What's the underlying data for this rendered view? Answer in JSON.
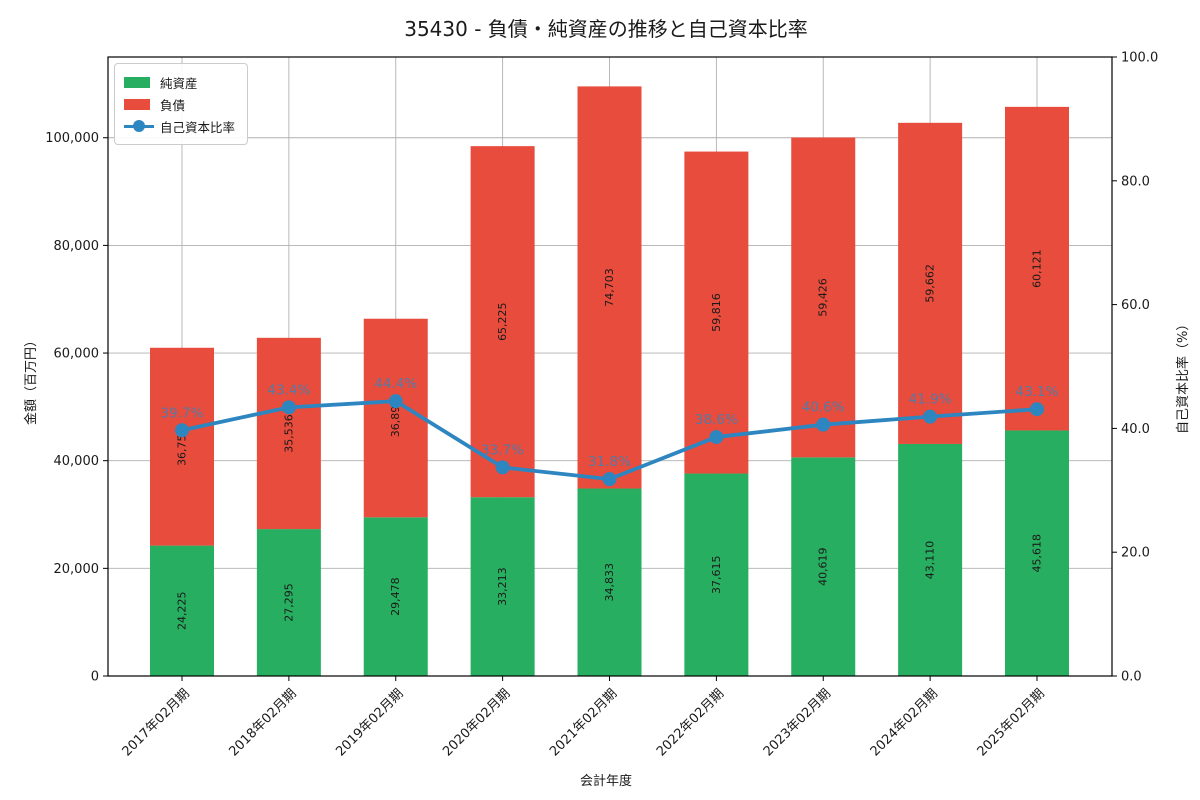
{
  "chart_data": {
    "type": "bar",
    "stacked": true,
    "overlay_line": true,
    "title": "35430 - 負債・純資産の推移と自己資本比率",
    "xlabel": "会計年度",
    "ylabel_left": "金額（百万円）",
    "ylabel_right": "自己資本比率（%）",
    "ylim_left": [
      0,
      115000
    ],
    "ylim_right": [
      0,
      100
    ],
    "grid": true,
    "legend_position": "upper left",
    "categories": [
      "2017年02月期",
      "2018年02月期",
      "2019年02月期",
      "2020年02月期",
      "2021年02月期",
      "2022年02月期",
      "2023年02月期",
      "2024年02月期",
      "2025年02月期"
    ],
    "series": [
      {
        "name": "純資産",
        "role": "bar-bottom",
        "color": "#27ae60",
        "values": [
          24225,
          27295,
          29478,
          33213,
          34833,
          37615,
          40619,
          43110,
          45618
        ],
        "value_labels": [
          "24,225",
          "27,295",
          "29,478",
          "33,213",
          "34,833",
          "37,615",
          "40,619",
          "43,110",
          "45,618"
        ]
      },
      {
        "name": "負債",
        "role": "bar-top",
        "color": "#e74c3c",
        "values": [
          36755,
          35536,
          36895,
          65225,
          74703,
          59816,
          59426,
          59662,
          60121
        ],
        "value_labels": [
          "36,755",
          "35,536",
          "36,895",
          "65,225",
          "74,703",
          "59,816",
          "59,426",
          "59,662",
          "60,121"
        ]
      }
    ],
    "line_series": {
      "name": "自己資本比率",
      "axis": "right",
      "color": "#2e86c1",
      "values": [
        39.7,
        43.4,
        44.4,
        33.7,
        31.8,
        38.6,
        40.6,
        41.9,
        43.1
      ],
      "value_labels": [
        "39.7%",
        "43.4%",
        "44.4%",
        "33.7%",
        "31.8%",
        "38.6%",
        "40.6%",
        "41.9%",
        "43.1%"
      ]
    },
    "yticks_left": {
      "values": [
        0,
        20000,
        40000,
        60000,
        80000,
        100000
      ],
      "labels": [
        "0",
        "20,000",
        "40,000",
        "60,000",
        "80,000",
        "100,000"
      ]
    },
    "yticks_right": {
      "values": [
        0,
        20,
        40,
        60,
        80,
        100
      ],
      "labels": [
        "0.0",
        "20.0",
        "40.0",
        "60.0",
        "80.0",
        "100.0"
      ]
    }
  },
  "colors": {
    "background": "#ffffff",
    "grid": "#b0b0b0",
    "spine": "#000000",
    "tick_label": "#1a1a1a",
    "bar_value_label": "#1a1a1a",
    "ratio_label": "#2e86c1"
  }
}
